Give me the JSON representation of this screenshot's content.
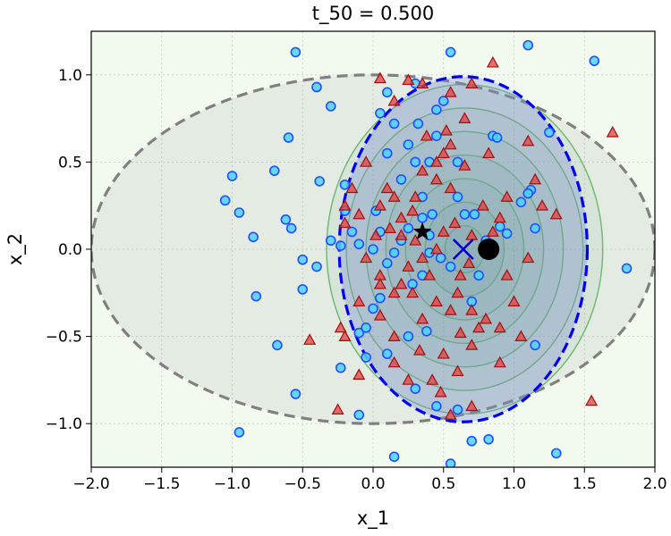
{
  "chart_data": {
    "type": "scatter",
    "title": "t_50 = 0.500",
    "xlabel": "x_1",
    "ylabel": "x_2",
    "xlim": [
      -2.0,
      2.0
    ],
    "ylim": [
      -1.25,
      1.25
    ],
    "xticks": [
      -2.0,
      -1.5,
      -1.0,
      -0.5,
      0.0,
      0.5,
      1.0,
      1.5,
      2.0
    ],
    "yticks": [
      -1.0,
      -0.5,
      0.0,
      0.5,
      1.0
    ],
    "xtick_labels": [
      "−2.0",
      "−1.5",
      "−1.0",
      "−0.5",
      "0.0",
      "0.5",
      "1.0",
      "1.5",
      "2.0"
    ],
    "ytick_labels": [
      "−1.0",
      "−0.5",
      "0.0",
      "0.5",
      "1.0"
    ],
    "grid": true,
    "colors": {
      "background": "#f2faf0",
      "contour_line": "#5cb85c",
      "contour_fill": "#2e8b57",
      "circle_face": "#4dd2ff",
      "circle_edge": "#1f4fff",
      "triangle_face": "#e04040",
      "triangle_edge": "#a01010",
      "gray_ellipse": "#808080",
      "blue_ellipse": "#0000ee",
      "blue_fill": "#7b8fd0"
    },
    "density_contours": {
      "center": [
        0.65,
        0.0
      ],
      "sigma": [
        0.28,
        0.27
      ],
      "levels": [
        0.5,
        1.0,
        1.5,
        2.0,
        2.5,
        3.0,
        3.5
      ]
    },
    "gray_ellipse": {
      "center": [
        0.0,
        0.0
      ],
      "radii": [
        2.0,
        1.0
      ],
      "style": "dashed"
    },
    "blue_ellipse": {
      "center": [
        0.64,
        0.0
      ],
      "radii": [
        0.88,
        0.99
      ],
      "style": "dashed"
    },
    "markers": [
      {
        "name": "black-circle",
        "x": 0.82,
        "y": 0.0
      },
      {
        "name": "blue-x",
        "x": 0.64,
        "y": 0.0
      },
      {
        "name": "black-star",
        "x": 0.35,
        "y": 0.1
      }
    ],
    "series": [
      {
        "name": "circles",
        "marker": "o",
        "points": [
          [
            -0.55,
            1.13
          ],
          [
            -0.4,
            0.93
          ],
          [
            -0.3,
            0.82
          ],
          [
            0.55,
            1.13
          ],
          [
            1.1,
            1.17
          ],
          [
            1.57,
            1.08
          ],
          [
            0.05,
            0.78
          ],
          [
            0.1,
            0.9
          ],
          [
            0.3,
            0.95
          ],
          [
            0.45,
            0.8
          ],
          [
            0.15,
            0.72
          ],
          [
            -0.6,
            0.64
          ],
          [
            -0.7,
            0.45
          ],
          [
            -1.0,
            0.42
          ],
          [
            -0.38,
            0.39
          ],
          [
            -0.2,
            0.37
          ],
          [
            -1.05,
            0.28
          ],
          [
            -0.95,
            0.21
          ],
          [
            -0.62,
            0.17
          ],
          [
            -0.58,
            0.12
          ],
          [
            -0.85,
            0.07
          ],
          [
            -0.2,
            0.22
          ],
          [
            -0.15,
            0.1
          ],
          [
            -0.1,
            0.03
          ],
          [
            -0.23,
            0.02
          ],
          [
            0.02,
            0.22
          ],
          [
            -0.5,
            -0.06
          ],
          [
            -0.4,
            -0.1
          ],
          [
            -0.5,
            -0.23
          ],
          [
            -0.83,
            -0.27
          ],
          [
            -0.68,
            -0.55
          ],
          [
            -0.55,
            -0.83
          ],
          [
            -0.23,
            -0.68
          ],
          [
            -0.1,
            -0.48
          ],
          [
            0.0,
            -0.34
          ],
          [
            0.05,
            -0.28
          ],
          [
            -0.05,
            -0.45
          ],
          [
            0.1,
            -0.6
          ],
          [
            0.25,
            -0.5
          ],
          [
            0.28,
            -0.2
          ],
          [
            0.35,
            -0.15
          ],
          [
            0.1,
            0.55
          ],
          [
            0.25,
            0.6
          ],
          [
            0.3,
            0.5
          ],
          [
            0.2,
            0.4
          ],
          [
            0.35,
            0.3
          ],
          [
            0.4,
            0.5
          ],
          [
            0.5,
            0.85
          ],
          [
            0.6,
            0.5
          ],
          [
            0.65,
            0.2
          ],
          [
            0.72,
            0.2
          ],
          [
            0.8,
            0.05
          ],
          [
            0.9,
            0.13
          ],
          [
            0.95,
            0.09
          ],
          [
            0.85,
            0.65
          ],
          [
            0.88,
            0.64
          ],
          [
            1.25,
            0.67
          ],
          [
            1.12,
            0.34
          ],
          [
            1.1,
            0.32
          ],
          [
            1.05,
            0.27
          ],
          [
            1.15,
            0.12
          ],
          [
            1.15,
            -0.55
          ],
          [
            1.8,
            -0.11
          ],
          [
            0.45,
            -0.9
          ],
          [
            0.3,
            -0.8
          ],
          [
            0.6,
            -0.92
          ],
          [
            0.7,
            -1.1
          ],
          [
            0.82,
            -1.09
          ],
          [
            0.15,
            -1.19
          ],
          [
            0.55,
            -1.23
          ],
          [
            1.3,
            -1.17
          ],
          [
            -0.1,
            -0.95
          ],
          [
            -0.95,
            -1.05
          ],
          [
            0.0,
            0.0
          ],
          [
            0.15,
            -0.02
          ],
          [
            0.4,
            -0.02
          ],
          [
            0.2,
            0.05
          ],
          [
            0.1,
            -0.08
          ],
          [
            0.38,
            -0.47
          ],
          [
            -0.05,
            -0.62
          ],
          [
            0.05,
            0.1
          ],
          [
            0.25,
            0.12
          ],
          [
            0.35,
            0.18
          ],
          [
            0.42,
            0.2
          ],
          [
            0.6,
            0.3
          ],
          [
            0.4,
            0.08
          ],
          [
            0.48,
            -0.05
          ],
          [
            0.55,
            -0.1
          ],
          [
            -0.3,
            0.05
          ],
          [
            0.7,
            -0.3
          ],
          [
            0.75,
            -0.15
          ],
          [
            0.45,
            0.65
          ],
          [
            0.32,
            0.72
          ]
        ]
      },
      {
        "name": "triangles",
        "marker": "^",
        "points": [
          [
            0.05,
            0.98
          ],
          [
            0.15,
            0.85
          ],
          [
            0.25,
            0.97
          ],
          [
            0.35,
            0.95
          ],
          [
            0.55,
            0.9
          ],
          [
            0.7,
            0.95
          ],
          [
            0.85,
            1.07
          ],
          [
            1.1,
            0.62
          ],
          [
            1.7,
            0.67
          ],
          [
            0.3,
            0.3
          ],
          [
            0.28,
            0.22
          ],
          [
            0.55,
            0.6
          ],
          [
            0.65,
            0.48
          ],
          [
            0.5,
            0.55
          ],
          [
            0.82,
            0.55
          ],
          [
            0.55,
            0.35
          ],
          [
            0.45,
            0.4
          ],
          [
            0.35,
            0.45
          ],
          [
            0.1,
            0.35
          ],
          [
            0.05,
            0.25
          ],
          [
            0.15,
            0.3
          ],
          [
            0.2,
            0.18
          ],
          [
            -0.1,
            0.2
          ],
          [
            -0.2,
            0.25
          ],
          [
            -0.15,
            0.35
          ],
          [
            0.02,
            0.08
          ],
          [
            0.12,
            0.12
          ],
          [
            0.2,
            0.08
          ],
          [
            0.3,
            0.05
          ],
          [
            0.35,
            -0.05
          ],
          [
            0.25,
            -0.1
          ],
          [
            0.28,
            -0.25
          ],
          [
            0.15,
            -0.25
          ],
          [
            0.05,
            -0.15
          ],
          [
            -0.05,
            -0.05
          ],
          [
            0.45,
            -0.3
          ],
          [
            0.55,
            -0.35
          ],
          [
            0.6,
            -0.25
          ],
          [
            0.7,
            -0.35
          ],
          [
            0.8,
            -0.4
          ],
          [
            0.9,
            -0.45
          ],
          [
            1.0,
            -0.3
          ],
          [
            1.05,
            -0.5
          ],
          [
            0.95,
            -0.15
          ],
          [
            1.1,
            -0.05
          ],
          [
            1.2,
            0.25
          ],
          [
            1.3,
            0.2
          ],
          [
            1.15,
            0.4
          ],
          [
            0.95,
            0.3
          ],
          [
            0.9,
            0.18
          ],
          [
            0.85,
            0.1
          ],
          [
            0.78,
            0.25
          ],
          [
            0.7,
            0.08
          ],
          [
            0.68,
            -0.08
          ],
          [
            0.62,
            -0.15
          ],
          [
            0.58,
            0.15
          ],
          [
            0.5,
            0.1
          ],
          [
            0.45,
            0.0
          ],
          [
            0.4,
            -0.15
          ],
          [
            0.35,
            -0.4
          ],
          [
            0.15,
            -0.5
          ],
          [
            0.05,
            -0.38
          ],
          [
            -0.1,
            -0.3
          ],
          [
            -0.2,
            -0.5
          ],
          [
            -0.23,
            -0.45
          ],
          [
            -0.45,
            -0.52
          ],
          [
            -0.25,
            -0.92
          ],
          [
            -0.1,
            -0.72
          ],
          [
            0.15,
            -0.65
          ],
          [
            0.25,
            -0.75
          ],
          [
            0.42,
            -0.75
          ],
          [
            0.5,
            -0.6
          ],
          [
            0.6,
            -0.7
          ],
          [
            0.7,
            -0.55
          ],
          [
            0.9,
            -0.65
          ],
          [
            0.55,
            -0.95
          ],
          [
            0.7,
            -0.9
          ],
          [
            0.48,
            -0.82
          ],
          [
            0.62,
            -0.48
          ],
          [
            0.75,
            -0.45
          ],
          [
            1.55,
            -0.87
          ],
          [
            0.38,
            0.65
          ],
          [
            0.65,
            0.75
          ],
          [
            0.52,
            0.68
          ],
          [
            0.45,
            0.5
          ],
          [
            -0.05,
            0.5
          ],
          [
            -0.2,
            0.15
          ],
          [
            0.05,
            -0.2
          ],
          [
            0.2,
            -0.2
          ],
          [
            0.33,
            -0.58
          ]
        ]
      }
    ]
  }
}
